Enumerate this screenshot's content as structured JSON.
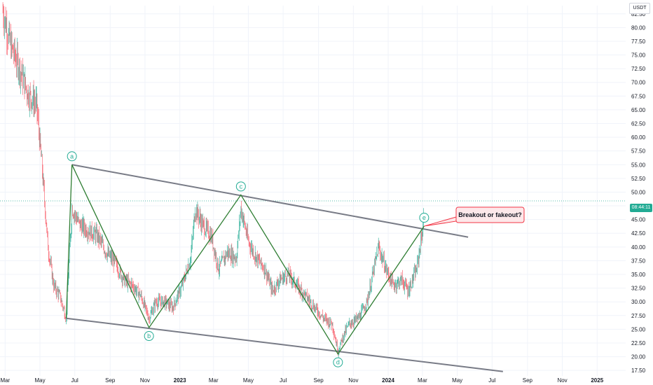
{
  "currency": "USDT",
  "current_price_label": "08:44:11",
  "colors": {
    "up": "#22ab94",
    "down": "#f7525f",
    "channel_line": "#787b86",
    "zigzag_line": "#2e7d32",
    "wave_label": "#22ab94",
    "callout_border": "#f23645",
    "callout_fill": "#fde8ea",
    "current_price_line": "#22ab94"
  },
  "chart_data": {
    "type": "candlestick",
    "price_ticks": [
      "82.50",
      "80.00",
      "77.50",
      "75.00",
      "72.50",
      "70.00",
      "67.50",
      "65.00",
      "62.50",
      "60.00",
      "57.50",
      "55.00",
      "52.50",
      "50.00",
      "47.50",
      "45.00",
      "42.50",
      "40.00",
      "37.50",
      "35.00",
      "32.50",
      "30.00",
      "27.50",
      "25.00",
      "22.50",
      "20.00",
      "17.50"
    ],
    "time_ticks": [
      "Mar",
      "May",
      "Jul",
      "Sep",
      "Nov",
      "2023",
      "Mar",
      "May",
      "Jul",
      "Sep",
      "Nov",
      "2024",
      "Mar",
      "May",
      "Jul",
      "Sep",
      "Nov",
      "2025"
    ],
    "ylim": [
      16.5,
      84
    ],
    "xlim": [
      "2022-02-20",
      "2025-02-20"
    ],
    "series": [
      {
        "ohlc_path": [
          [
            "2022-02-25",
            83
          ],
          [
            "2022-03-10",
            77
          ],
          [
            "2022-03-25",
            73
          ],
          [
            "2022-04-10",
            68
          ],
          [
            "2022-04-25",
            66
          ],
          [
            "2022-05-05",
            54
          ],
          [
            "2022-05-15",
            40
          ],
          [
            "2022-05-25",
            33
          ],
          [
            "2022-06-05",
            31
          ],
          [
            "2022-06-16",
            27
          ],
          [
            "2022-06-26",
            47
          ],
          [
            "2022-07-10",
            44
          ],
          [
            "2022-07-25",
            43
          ],
          [
            "2022-08-10",
            42
          ],
          [
            "2022-08-25",
            39
          ],
          [
            "2022-09-10",
            37
          ],
          [
            "2022-09-25",
            34
          ],
          [
            "2022-10-10",
            33
          ],
          [
            "2022-10-25",
            31
          ],
          [
            "2022-11-08",
            27
          ],
          [
            "2022-11-20",
            30
          ],
          [
            "2022-12-05",
            30
          ],
          [
            "2022-12-20",
            29
          ],
          [
            "2023-01-05",
            33
          ],
          [
            "2023-01-20",
            38
          ],
          [
            "2023-01-28",
            47
          ],
          [
            "2023-02-10",
            44
          ],
          [
            "2023-02-25",
            42
          ],
          [
            "2023-03-10",
            36
          ],
          [
            "2023-03-25",
            39
          ],
          [
            "2023-04-10",
            38
          ],
          [
            "2023-04-18",
            47
          ],
          [
            "2023-05-01",
            41
          ],
          [
            "2023-05-15",
            38
          ],
          [
            "2023-05-30",
            36
          ],
          [
            "2023-06-12",
            32
          ],
          [
            "2023-06-25",
            34
          ],
          [
            "2023-07-10",
            35
          ],
          [
            "2023-07-25",
            33
          ],
          [
            "2023-08-10",
            31
          ],
          [
            "2023-08-25",
            29
          ],
          [
            "2023-09-10",
            27
          ],
          [
            "2023-09-25",
            26
          ],
          [
            "2023-10-05",
            21
          ],
          [
            "2023-10-15",
            24
          ],
          [
            "2023-10-25",
            26
          ],
          [
            "2023-11-10",
            27
          ],
          [
            "2023-11-25",
            30
          ],
          [
            "2023-12-05",
            35
          ],
          [
            "2023-12-15",
            40
          ],
          [
            "2023-12-28",
            36
          ],
          [
            "2024-01-10",
            33
          ],
          [
            "2024-01-25",
            34
          ],
          [
            "2024-02-05",
            32
          ],
          [
            "2024-02-20",
            36
          ],
          [
            "2024-03-01",
            43
          ],
          [
            "2024-03-04",
            46
          ]
        ]
      }
    ],
    "drawings": {
      "channel_upper": [
        [
          "2022-06-26",
          55
        ],
        [
          "2024-05-20",
          41.8
        ]
      ],
      "channel_lower": [
        [
          "2022-06-16",
          27
        ],
        [
          "2024-07-20",
          17.3
        ]
      ],
      "zigzag": [
        [
          "2022-06-16",
          27
        ],
        [
          "2022-06-26",
          55
        ],
        [
          "2022-11-08",
          25.3
        ],
        [
          "2023-04-18",
          49.5
        ],
        [
          "2023-10-05",
          20.5
        ],
        [
          "2024-03-04",
          43.8
        ]
      ],
      "wave_labels": [
        {
          "text": "a",
          "date": "2022-06-26",
          "price": 55,
          "position": "above"
        },
        {
          "text": "b",
          "date": "2022-11-08",
          "price": 25.3,
          "position": "below"
        },
        {
          "text": "c",
          "date": "2023-04-18",
          "price": 49.5,
          "position": "above"
        },
        {
          "text": "d",
          "date": "2023-10-05",
          "price": 20.5,
          "position": "below"
        },
        {
          "text": "e",
          "date": "2024-03-04",
          "price": 43.8,
          "position": "above"
        }
      ],
      "callout": {
        "text": "Breakout or fakeout?",
        "date": "2024-03-04",
        "price": 43.8
      },
      "current_price": 48.4
    }
  }
}
